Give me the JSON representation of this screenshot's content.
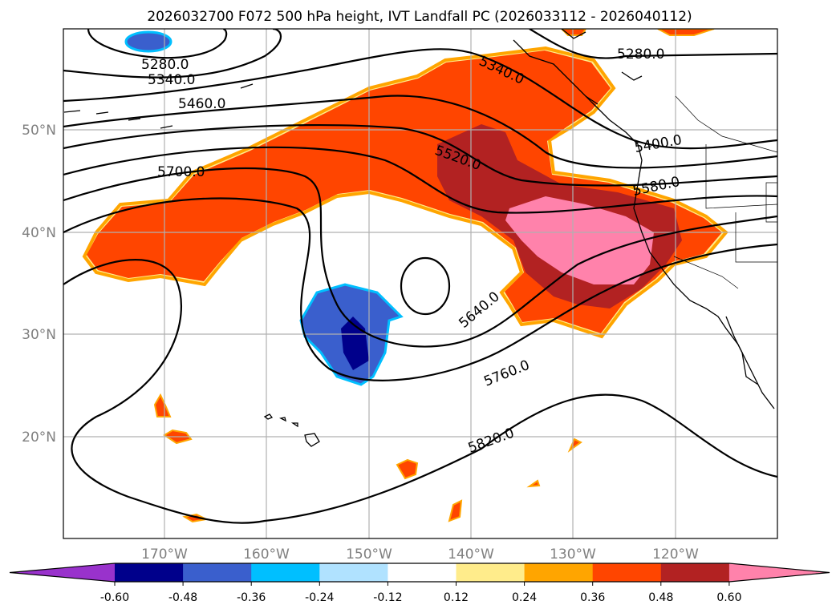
{
  "title": "2026032700 F072 500 hPa height, IVT Landfall PC (2026033112 - 2026040112)",
  "axes": {
    "x_ticks": [
      "170°W",
      "160°W",
      "150°W",
      "140°W",
      "130°W",
      "120°W"
    ],
    "y_ticks": [
      "50°N",
      "40°N",
      "30°N",
      "20°N"
    ],
    "lon_range": [
      -180,
      -110
    ],
    "lat_range": [
      10,
      60
    ]
  },
  "contour_labels": [
    "5280.0",
    "5340.0",
    "5460.0",
    "5340.0",
    "5280.0",
    "5520.0",
    "5400.0",
    "5580.0",
    "5700.0",
    "5640.0",
    "5760.0",
    "5820.0"
  ],
  "colorbar": {
    "ticks": [
      "-0.60",
      "-0.48",
      "-0.36",
      "-0.24",
      "-0.12",
      "0.12",
      "0.24",
      "0.36",
      "0.48",
      "0.60"
    ],
    "colors": [
      "#9932cc",
      "#00008b",
      "#3a5fcd",
      "#00bfff",
      "#b0e2ff",
      "#ffffff",
      "#ffec8b",
      "#ffa500",
      "#ff4500",
      "#b22222",
      "#ff82ab"
    ]
  }
}
